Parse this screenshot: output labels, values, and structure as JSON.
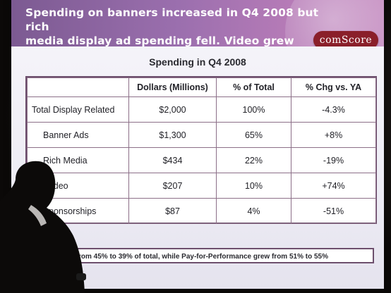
{
  "slide": {
    "title_line1": "Spending on banners increased in Q4 2008 but rich",
    "title_line2": "media display ad spending fell. Video grew strongly",
    "logo_text": "comScore",
    "table_title": "Spending in Q4 2008",
    "footer_text": "vertising fell from 45% to 39% of total, while Pay-for-Performance grew from 51% to 55%"
  },
  "table": {
    "headers": [
      "",
      "Dollars (Millions)",
      "% of Total",
      "% Chg vs. YA"
    ],
    "rows": [
      {
        "name": "Total Display Related",
        "dollars": "$2,000",
        "pct_total": "100%",
        "chg": "-4.3%"
      },
      {
        "name": "Banner Ads",
        "dollars": "$1,300",
        "pct_total": "65%",
        "chg": "+8%"
      },
      {
        "name": "Rich Media",
        "dollars": "$434",
        "pct_total": "22%",
        "chg": "-19%"
      },
      {
        "name": "ideo",
        "dollars": "$207",
        "pct_total": "10%",
        "chg": "+74%"
      },
      {
        "name": "ponsorships",
        "dollars": "$87",
        "pct_total": "4%",
        "chg": "-51%"
      }
    ]
  },
  "colors": {
    "header_purple": "#9b6fae",
    "logo_red": "#8a1f2a",
    "table_border": "#6d4f6d"
  }
}
